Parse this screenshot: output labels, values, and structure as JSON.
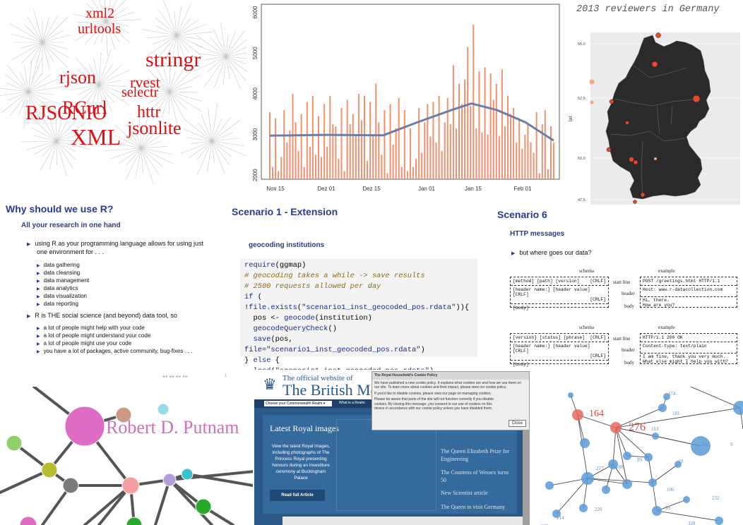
{
  "wordcloud": {
    "words": [
      {
        "text": "xml2",
        "size": 20,
        "left": 121,
        "top": 8
      },
      {
        "text": "urltools",
        "size": 20,
        "left": 110,
        "top": 30
      },
      {
        "text": "stringr",
        "size": 30,
        "left": 206,
        "top": 68
      },
      {
        "text": "rjson",
        "size": 26,
        "left": 84,
        "top": 95
      },
      {
        "text": "rvest",
        "size": 22,
        "left": 184,
        "top": 104
      },
      {
        "text": "selectr",
        "size": 20,
        "left": 172,
        "top": 120
      },
      {
        "text": "RCurl",
        "size": 26,
        "left": 88,
        "top": 138
      },
      {
        "text": "RJSONIO",
        "size": 28,
        "left": 36,
        "top": 145
      },
      {
        "text": "httr",
        "size": 24,
        "left": 194,
        "top": 146
      },
      {
        "text": "jsonlite",
        "size": 26,
        "left": 180,
        "top": 167
      },
      {
        "text": "XML",
        "size": 32,
        "left": 100,
        "top": 176
      }
    ]
  },
  "timeseries": {
    "chart_data": {
      "type": "bar",
      "x_ticks": [
        "Nov 15",
        "Dez 01",
        "Dez 15",
        "Jan 01",
        "Jan 15",
        "Feb 01"
      ],
      "y_ticks": [
        "2000",
        "3000",
        "4000",
        "5000",
        "6000"
      ],
      "ylim": [
        1900,
        6200
      ],
      "values": [
        3550,
        2200,
        3400,
        2100,
        2450,
        3600,
        2800,
        3100,
        4000,
        3300,
        2600,
        3500,
        2200,
        3800,
        2700,
        3950,
        2500,
        3450,
        2450,
        3750,
        2700,
        3950,
        3250,
        3200,
        2400,
        3650,
        2100,
        3850,
        3250,
        3500,
        3000,
        4000,
        3350,
        3950,
        2350,
        3800,
        3000,
        4250,
        3300,
        2500,
        3600,
        2050,
        3750,
        2750,
        3150,
        3900,
        2200,
        3600,
        2100,
        3150,
        2200,
        2400,
        3650,
        2550,
        3300,
        3750,
        2950,
        3800,
        2800,
        3950,
        2600,
        3300,
        3900,
        3250,
        4700,
        3150,
        4250,
        3750,
        4350,
        5150,
        3700,
        5700,
        3150,
        4550,
        3050,
        4650,
        3000,
        4500,
        3850,
        4250,
        2950,
        4600,
        3200,
        3950,
        3500,
        3650,
        2800,
        3400,
        2650,
        3000,
        3250,
        2800,
        2550,
        3550,
        2050,
        3250,
        3600,
        2150,
        3200,
        2800
      ],
      "trend": [
        [
          0,
          2970
        ],
        [
          20,
          2990
        ],
        [
          40,
          2980
        ],
        [
          52,
          3300
        ],
        [
          64,
          3600
        ],
        [
          71,
          3760
        ],
        [
          80,
          3600
        ],
        [
          90,
          3300
        ],
        [
          100,
          2850
        ]
      ]
    }
  },
  "germany": {
    "title": "2013 reviewers in Germany",
    "y_ticks": [
      "55.0",
      "52.5",
      "50.0",
      "47.5"
    ],
    "ylabel": "lat"
  },
  "slide1": {
    "title": "Why should we use R?",
    "subtitle": "All your research in one hand",
    "b1": "using R as your programming language allows for using just",
    "b1b": "one environment for . . .",
    "sub1": [
      "data gathering",
      "data cleansing",
      "data management",
      "data analytics",
      "data visualization",
      "data reporting"
    ],
    "b2": "R is THE social science (and beyond) data tool, so",
    "sub2": [
      "a lot of people might help with your code",
      "a lot of people might understand your code",
      "a lot of people might use your code",
      "you have a lot of packages, active community, bug-fixes . . ."
    ],
    "page": "1"
  },
  "slide2": {
    "title": "Scenario 1 - Extension",
    "subtitle": "geocoding institutions"
  },
  "slide3": {
    "title": "Scenario 6",
    "subtitle": "HTTP messages",
    "bullet": "but where goes our data?",
    "schema": "schema",
    "example": "example",
    "start_line": "start line",
    "header": "header",
    "body": "body",
    "req": {
      "l1": "[method] [path] [version]",
      "l1r": "[CRLF]",
      "l2": "[header name:] [header value] [CRLF]",
      "l3": "[CRLF]",
      "l4": "[body]",
      "e1": "POST /greetings.html HTTP/1.1",
      "e2": "Host: www.r-datacollection.com",
      "e3": "Hi, there.",
      "e4": "How are you?"
    },
    "res": {
      "l1": "[version] [status] [phrase]",
      "l1r": "[CRLF]",
      "l2": "[header name:] [header value] [CRLF]",
      "l3": "[CRLF]",
      "l4": "[body]",
      "e1": "HTTP/1.1 200 OK",
      "e2": "Content-type: text/plain",
      "e3": "I am fine, thank you very much.",
      "e4": "What else might I help you with?"
    }
  },
  "network1": {
    "label": "Robert D. Putnam"
  },
  "royal": {
    "official": "The official website of",
    "name": "The British Mona",
    "select": "Choose your Commonwealth Realm",
    "nav": "What is a Realm",
    "latest": "Latest Royal images",
    "desc": "View the latest Royal images, including photographs of The Princess Royal presenting honours during an Investiture ceremony at Buckingham Palace",
    "read": "Read full Article",
    "links": [
      "The Queen Elizabeth Prize for Engineering",
      "The Countess of Wessex turns 50",
      "New Scientist article",
      "The Queen to visit Germany"
    ],
    "cookie_title": "The Royal Household's Cookie Policy",
    "cookie_p1": "We have published a new cookie policy. It explains what cookies are and how we use them on our site. To learn more about cookies and their impact, please view our cookie policy.",
    "cookie_p2": "If you'd like to disable cookies, please view our page on managing cookies.",
    "cookie_p3": "Please be aware that parts of the site will not function correctly if you disable cookies. By closing this message, you consent to our use of cookies on this device in accordance with our cookie policy unless you have disabled them.",
    "close": "Close"
  },
  "network2": {
    "big_labels": [
      "164",
      "276"
    ],
    "small_labels": [
      "174",
      "181",
      "163",
      "19",
      "9",
      "84",
      "106",
      "263",
      "214",
      "220",
      "99",
      "328",
      "232",
      "89",
      "227",
      "188"
    ]
  }
}
